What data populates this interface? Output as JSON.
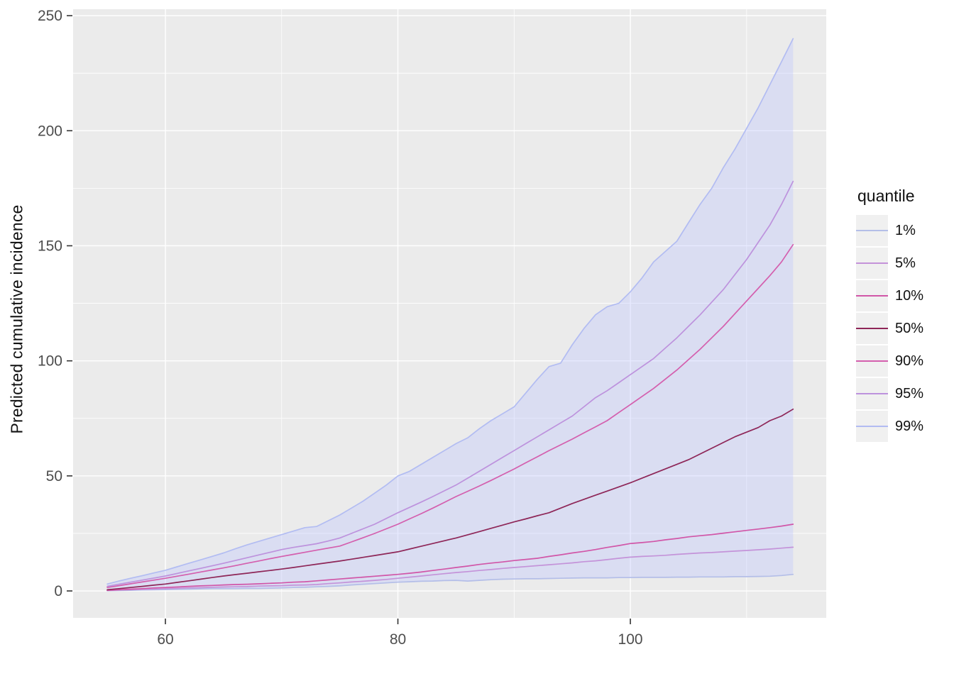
{
  "figure": {
    "y_axis_title": "Predicted cumulative incidence",
    "x_axis_title": "",
    "legend": {
      "title": "quantile",
      "entries": [
        {
          "label": "1%",
          "color": "#b4bee8"
        },
        {
          "label": "5%",
          "color": "#c493d9"
        },
        {
          "label": "10%",
          "color": "#d156a8"
        },
        {
          "label": "50%",
          "color": "#8e2658"
        },
        {
          "label": "90%",
          "color": "#d45fae"
        },
        {
          "label": "95%",
          "color": "#bd92dd"
        },
        {
          "label": "99%",
          "color": "#b2bcf2"
        }
      ]
    }
  },
  "chart_data": {
    "type": "line",
    "title": "",
    "xlabel": "",
    "ylabel": "Predicted cumulative incidence",
    "legend_title": "quantile",
    "legend_position": "right",
    "grid": "on",
    "panel_bg": "#ebebeb",
    "xlim": [
      52.06,
      116.85
    ],
    "ylim": [
      -11.7,
      252.8
    ],
    "x_ticks_major": [
      60,
      80,
      100
    ],
    "x_tick_labels": [
      "60",
      "80",
      "100"
    ],
    "x_ticks_minor": [
      70,
      90,
      110
    ],
    "y_ticks_major": [
      0,
      50,
      100,
      150,
      200,
      250
    ],
    "y_tick_labels": [
      "0",
      "50",
      "100",
      "150",
      "200",
      "250"
    ],
    "y_ticks_minor": [
      25,
      75,
      125,
      175,
      225
    ],
    "ribbon": {
      "upper_series": "99%",
      "lower_series": "1%",
      "fill": "rgba(186,196,255,0.35)"
    },
    "x": [
      55,
      56,
      57,
      58,
      59,
      60,
      61,
      62,
      63,
      64,
      65,
      66,
      67,
      68,
      69,
      70,
      71,
      72,
      73,
      74,
      75,
      76,
      77,
      78,
      79,
      80,
      81,
      82,
      83,
      84,
      85,
      86,
      87,
      88,
      89,
      90,
      91,
      92,
      93,
      94,
      95,
      96,
      97,
      98,
      99,
      100,
      101,
      102,
      103,
      104,
      105,
      106,
      107,
      108,
      109,
      110,
      111,
      112,
      113,
      114
    ],
    "series": [
      {
        "name": "1%",
        "color": "#b4bee8",
        "values": [
          0.1,
          0.2,
          0.3,
          0.4,
          0.5,
          0.6,
          0.7,
          0.8,
          0.9,
          1,
          1,
          1,
          1.1,
          1.1,
          1.2,
          1.3,
          1.5,
          1.6,
          1.8,
          2,
          2.2,
          2.6,
          2.9,
          3.2,
          3.5,
          3.8,
          4,
          4.2,
          4.3,
          4.5,
          4.6,
          4.3,
          4.6,
          4.9,
          5.1,
          5.2,
          5.3,
          5.3,
          5.4,
          5.5,
          5.6,
          5.7,
          5.7,
          5.7,
          5.8,
          5.8,
          5.9,
          5.9,
          5.9,
          6,
          6,
          6.1,
          6.1,
          6.1,
          6.2,
          6.2,
          6.3,
          6.4,
          6.7,
          7.2
        ]
      },
      {
        "name": "5%",
        "color": "#c493d9",
        "values": [
          0.2,
          0.4,
          0.5,
          0.7,
          0.8,
          1,
          1.1,
          1.3,
          1.4,
          1.6,
          1.7,
          1.8,
          1.9,
          2.1,
          2.2,
          2.3,
          2.5,
          2.6,
          2.8,
          3.2,
          3.5,
          3.9,
          4.2,
          4.6,
          5,
          5.5,
          6,
          6.5,
          7,
          7.5,
          8,
          8.4,
          8.9,
          9.3,
          9.8,
          10.2,
          10.6,
          11,
          11.4,
          11.8,
          12.2,
          12.7,
          13.1,
          13.6,
          14.2,
          14.7,
          15,
          15.2,
          15.5,
          15.9,
          16.2,
          16.5,
          16.7,
          17,
          17.3,
          17.6,
          17.9,
          18.2,
          18.6,
          19
        ]
      },
      {
        "name": "10%",
        "color": "#d156a8",
        "values": [
          0.3,
          0.5,
          0.8,
          1,
          1.3,
          1.5,
          1.7,
          2,
          2.2,
          2.4,
          2.6,
          2.8,
          2.9,
          3.1,
          3.3,
          3.5,
          3.8,
          4,
          4.4,
          4.8,
          5.2,
          5.6,
          6,
          6.4,
          6.8,
          7.2,
          7.7,
          8.2,
          8.9,
          9.5,
          10.2,
          10.8,
          11.5,
          12.1,
          12.6,
          13.2,
          13.7,
          14.2,
          15,
          15.7,
          16.5,
          17.2,
          18,
          18.9,
          19.7,
          20.6,
          21,
          21.5,
          22.2,
          22.8,
          23.5,
          24,
          24.5,
          25.1,
          25.7,
          26.3,
          26.9,
          27.5,
          28.2,
          29
        ]
      },
      {
        "name": "50%",
        "color": "#8e2658",
        "values": [
          0.5,
          1,
          1.5,
          2,
          2.5,
          3,
          3.7,
          4.4,
          5.1,
          5.8,
          6.5,
          7.1,
          7.7,
          8.3,
          8.9,
          9.5,
          10.2,
          10.9,
          11.6,
          12.3,
          13,
          13.8,
          14.6,
          15.4,
          16.2,
          17,
          18.2,
          19.4,
          20.6,
          21.8,
          23,
          24.4,
          25.8,
          27.2,
          28.6,
          30,
          31.3,
          32.7,
          34,
          36,
          38,
          39.8,
          41.6,
          43.4,
          45.2,
          47,
          49,
          51,
          53,
          55,
          57,
          59.5,
          62,
          64.5,
          67,
          69,
          71,
          74,
          76,
          79
        ]
      },
      {
        "name": "90%",
        "color": "#d45fae",
        "values": [
          1.5,
          2.3,
          3.1,
          3.9,
          4.7,
          5.5,
          6.4,
          7.3,
          8.2,
          9.1,
          10,
          11,
          12,
          13,
          14,
          15,
          15.9,
          16.8,
          17.7,
          18.6,
          19.5,
          21.3,
          23.1,
          25,
          27,
          29,
          31.3,
          33.6,
          36,
          38.5,
          41,
          43.3,
          45.6,
          48,
          50.5,
          53,
          55.7,
          58.3,
          61,
          63.5,
          66,
          68.7,
          71.3,
          74,
          77.5,
          81,
          84.5,
          88,
          92,
          96,
          100.5,
          105,
          110,
          115,
          120.5,
          126,
          131.5,
          137,
          143,
          150.5
        ]
      },
      {
        "name": "95%",
        "color": "#bd92dd",
        "values": [
          2,
          2.9,
          3.8,
          4.7,
          5.6,
          6.5,
          7.6,
          8.7,
          9.8,
          10.9,
          12,
          13.2,
          14.4,
          15.6,
          16.8,
          18,
          18.9,
          19.7,
          20.5,
          21.7,
          23,
          25,
          27,
          29,
          31.5,
          34,
          36.3,
          38.6,
          41,
          43.5,
          46,
          49,
          52,
          55,
          58,
          61,
          64,
          67,
          70,
          73,
          76,
          80,
          84,
          87,
          90.5,
          94,
          97.5,
          101,
          105.5,
          110,
          115,
          120,
          125.5,
          131,
          137.5,
          144,
          151.5,
          159,
          168,
          178
        ]
      },
      {
        "name": "99%",
        "color": "#b2bcf2",
        "values": [
          3,
          4.3,
          5.5,
          6.6,
          7.8,
          9,
          10.5,
          12,
          13.5,
          15,
          16.5,
          18.3,
          20,
          21.5,
          23,
          24.5,
          26,
          27.5,
          28,
          30.5,
          33,
          36,
          39,
          42.5,
          46,
          50,
          52,
          55,
          58,
          61,
          64,
          66.5,
          70.5,
          74,
          77,
          80,
          86,
          92,
          97.5,
          99,
          107,
          114,
          120,
          123.5,
          125,
          130,
          136,
          143,
          147.5,
          152,
          160,
          168,
          175,
          184,
          192,
          201,
          210,
          220,
          230,
          240
        ]
      }
    ]
  }
}
